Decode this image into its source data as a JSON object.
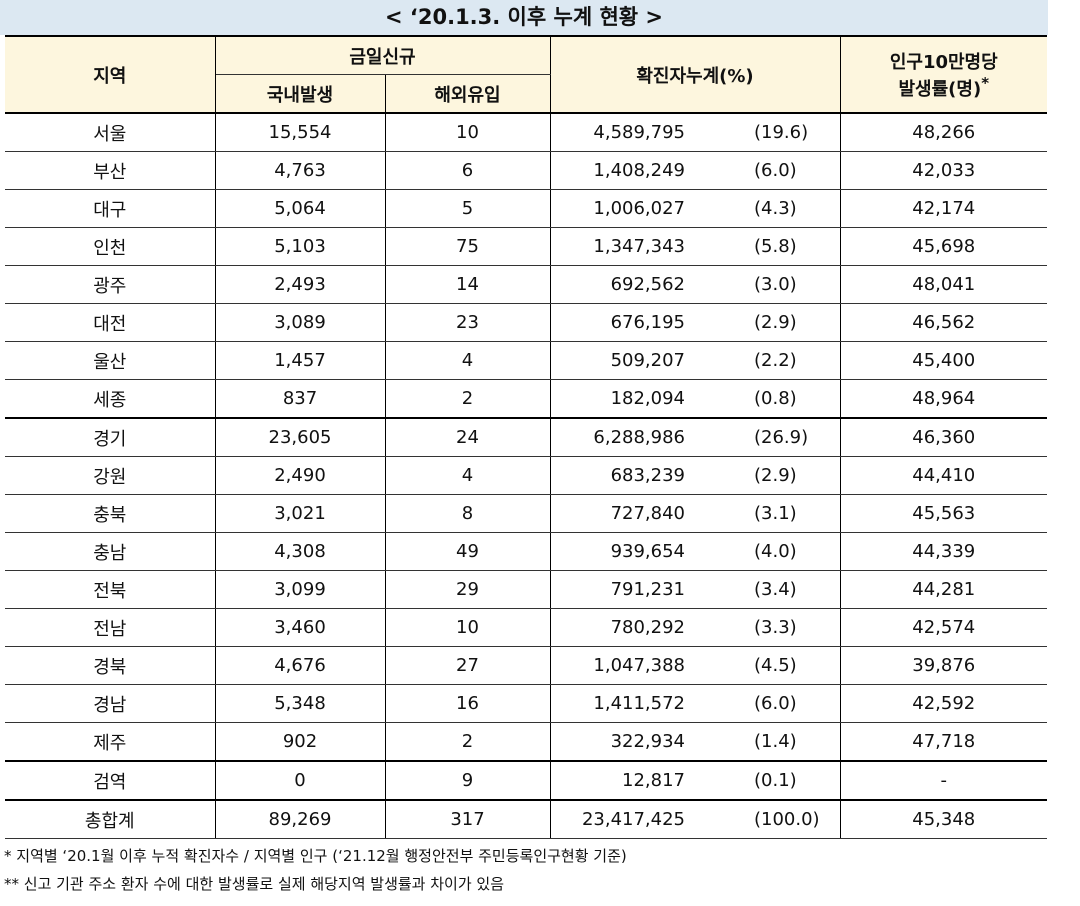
{
  "title": "< ‘20.1.3. 이후 누계 현황 >",
  "table": {
    "header": {
      "region": "지역",
      "today_new": "금일신규",
      "domestic": "국내발생",
      "overseas": "해외유입",
      "cumulative": "확진자누계(%)",
      "rate_line1": "인구10만명당",
      "rate_line2": "발생률(명)",
      "rate_mark": "*"
    },
    "rows": [
      [
        "서울",
        "15,554",
        "10",
        "4,589,795",
        "(19.6)",
        "48,266"
      ],
      [
        "부산",
        "4,763",
        "6",
        "1,408,249",
        "(6.0)",
        "42,033"
      ],
      [
        "대구",
        "5,064",
        "5",
        "1,006,027",
        "(4.3)",
        "42,174"
      ],
      [
        "인천",
        "5,103",
        "75",
        "1,347,343",
        "(5.8)",
        "45,698"
      ],
      [
        "광주",
        "2,493",
        "14",
        "692,562",
        "(3.0)",
        "48,041"
      ],
      [
        "대전",
        "3,089",
        "23",
        "676,195",
        "(2.9)",
        "46,562"
      ],
      [
        "울산",
        "1,457",
        "4",
        "509,207",
        "(2.2)",
        "45,400"
      ],
      [
        "세종",
        "837",
        "2",
        "182,094",
        "(0.8)",
        "48,964"
      ],
      [
        "경기",
        "23,605",
        "24",
        "6,288,986",
        "(26.9)",
        "46,360"
      ],
      [
        "강원",
        "2,490",
        "4",
        "683,239",
        "(2.9)",
        "44,410"
      ],
      [
        "충북",
        "3,021",
        "8",
        "727,840",
        "(3.1)",
        "45,563"
      ],
      [
        "충남",
        "4,308",
        "49",
        "939,654",
        "(4.0)",
        "44,339"
      ],
      [
        "전북",
        "3,099",
        "29",
        "791,231",
        "(3.4)",
        "44,281"
      ],
      [
        "전남",
        "3,460",
        "10",
        "780,292",
        "(3.3)",
        "42,574"
      ],
      [
        "경북",
        "4,676",
        "27",
        "1,047,388",
        "(4.5)",
        "39,876"
      ],
      [
        "경남",
        "5,348",
        "16",
        "1,411,572",
        "(6.0)",
        "42,592"
      ],
      [
        "제주",
        "902",
        "2",
        "322,934",
        "(1.4)",
        "47,718"
      ],
      [
        "검역",
        "0",
        "9",
        "12,817",
        "(0.1)",
        "-"
      ],
      [
        "총합계",
        "89,269",
        "317",
        "23,417,425",
        "(100.0)",
        "45,348"
      ]
    ]
  },
  "footnotes": [
    "* 지역별 ‘20.1월 이후 누적 확진자수 / 지역별 인구 (‘21.12월 행정안전부 주민등록인구현황 기준)",
    "** 신고 기관 주소 환자 수에 대한 발생률로 실제 해당지역 발생률과 차이가 있음"
  ]
}
